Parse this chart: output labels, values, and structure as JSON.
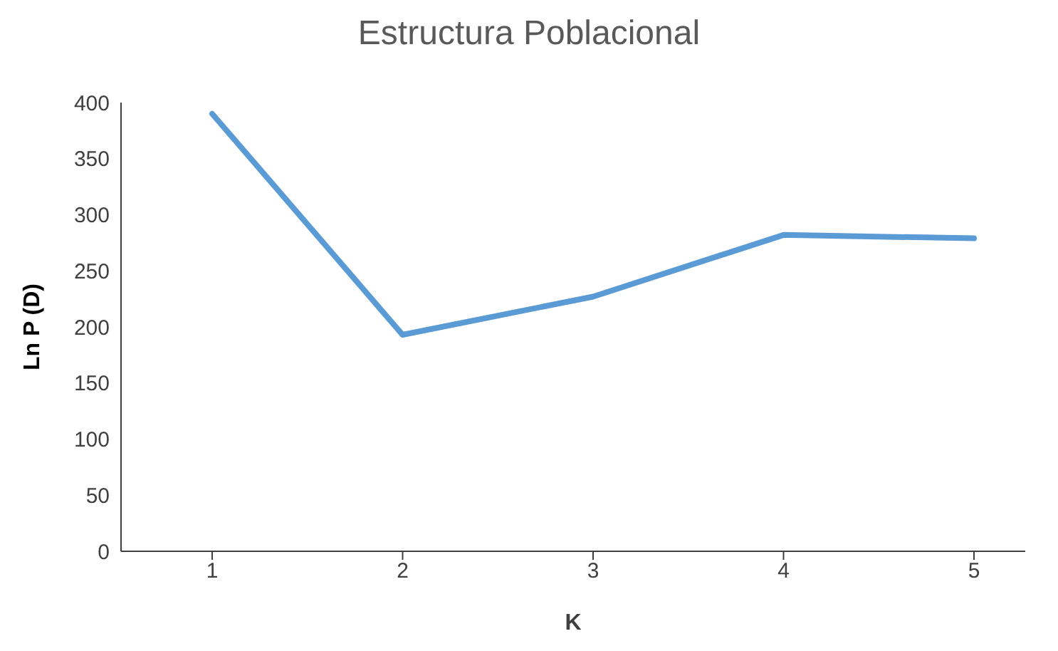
{
  "chart_data": {
    "type": "line",
    "title": "Estructura Poblacional",
    "xlabel": "K",
    "ylabel": "Ln P (D)",
    "categories": [
      "1",
      "2",
      "3",
      "4",
      "5"
    ],
    "series": [
      {
        "color": "#5b9bd5",
        "values": [
          390,
          193,
          227,
          282,
          279
        ]
      }
    ],
    "ylim": [
      0,
      400
    ],
    "yticks": [
      0,
      50,
      100,
      150,
      200,
      250,
      300,
      350,
      400
    ],
    "grid": false,
    "legend": false,
    "marker": "none",
    "line_style": "solid"
  }
}
